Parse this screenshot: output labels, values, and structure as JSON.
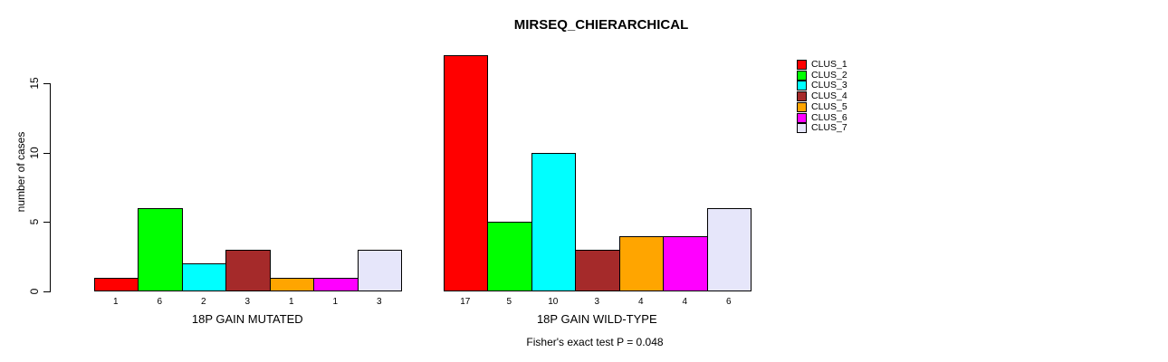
{
  "chart_data": {
    "type": "bar",
    "title": "MIRSEQ_CHIERARCHICAL",
    "ylabel": "number of cases",
    "yticks": [
      0,
      5,
      10,
      15
    ],
    "ylim": [
      0,
      17
    ],
    "grid": false,
    "legend_position": "right",
    "legend": [
      {
        "label": "CLUS_1",
        "color": "#FF0000"
      },
      {
        "label": "CLUS_2",
        "color": "#00FF00"
      },
      {
        "label": "CLUS_3",
        "color": "#00FFFF"
      },
      {
        "label": "CLUS_4",
        "color": "#A52A2A"
      },
      {
        "label": "CLUS_5",
        "color": "#FFA500"
      },
      {
        "label": "CLUS_6",
        "color": "#FF00FF"
      },
      {
        "label": "CLUS_7",
        "color": "#E6E6FA"
      }
    ],
    "groups": [
      {
        "label": "18P GAIN MUTATED",
        "values": [
          1,
          6,
          2,
          3,
          1,
          1,
          3
        ]
      },
      {
        "label": "18P GAIN WILD-TYPE",
        "values": [
          17,
          5,
          10,
          3,
          4,
          4,
          6
        ]
      }
    ],
    "annotation": "Fisher's exact test P = 0.048"
  }
}
